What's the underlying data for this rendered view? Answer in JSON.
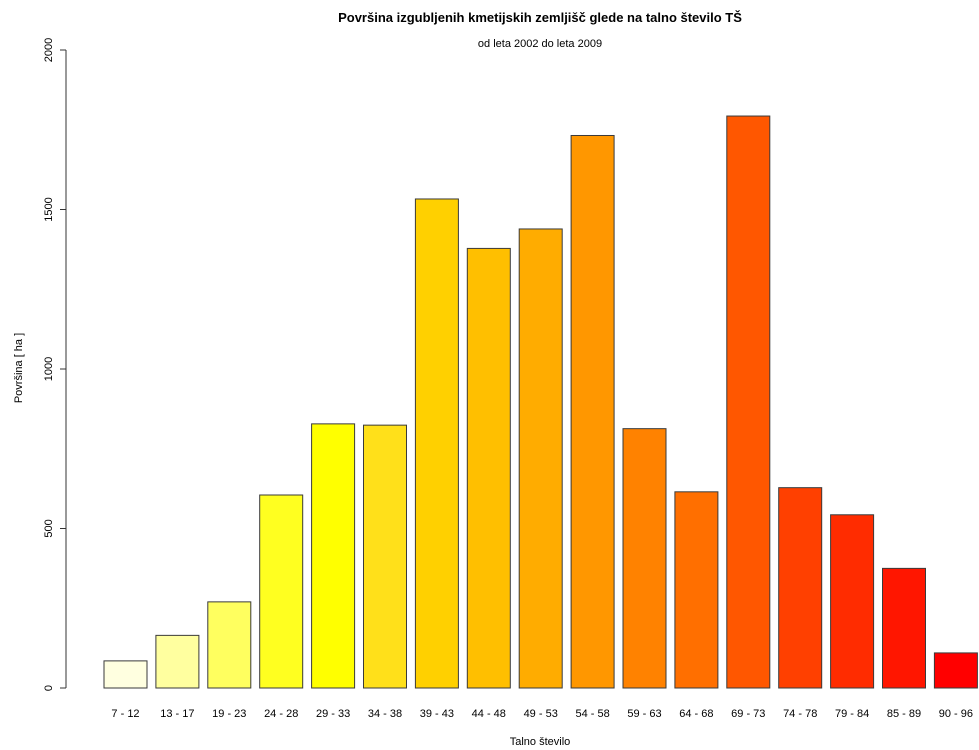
{
  "chart_data": {
    "type": "bar",
    "title": "Površina izgubljenih kmetijskih zemljišč glede na talno število TŠ",
    "subtitle": "od leta 2002 do leta 2009",
    "xlabel": "Talno število",
    "ylabel": "Površina [ ha ]",
    "ylim": [
      0,
      2000
    ],
    "yticks": [
      0,
      500,
      1000,
      1500,
      2000
    ],
    "grid": false,
    "categories": [
      "7 - 12",
      "13 - 17",
      "19 - 23",
      "24 - 28",
      "29 - 33",
      "34 - 38",
      "39 - 43",
      "44 - 48",
      "49 - 53",
      "54 - 58",
      "59 - 63",
      "64 - 68",
      "69 - 73",
      "74 - 78",
      "79 - 84",
      "85 - 89",
      "90 - 96"
    ],
    "values": [
      85,
      165,
      270,
      605,
      828,
      824,
      1533,
      1378,
      1439,
      1732,
      813,
      615,
      1793,
      628,
      543,
      375,
      110
    ],
    "colors": [
      "#FFFFE0",
      "#FFFF9F",
      "#FFFF5F",
      "#FFFF20",
      "#FFFF00",
      "#FFE01A",
      "#FFD000",
      "#FFBF00",
      "#FFAC00",
      "#FF9700",
      "#FF8200",
      "#FF6F00",
      "#FF5700",
      "#FF4000",
      "#FF2C00",
      "#FF1600",
      "#FF0000"
    ]
  }
}
